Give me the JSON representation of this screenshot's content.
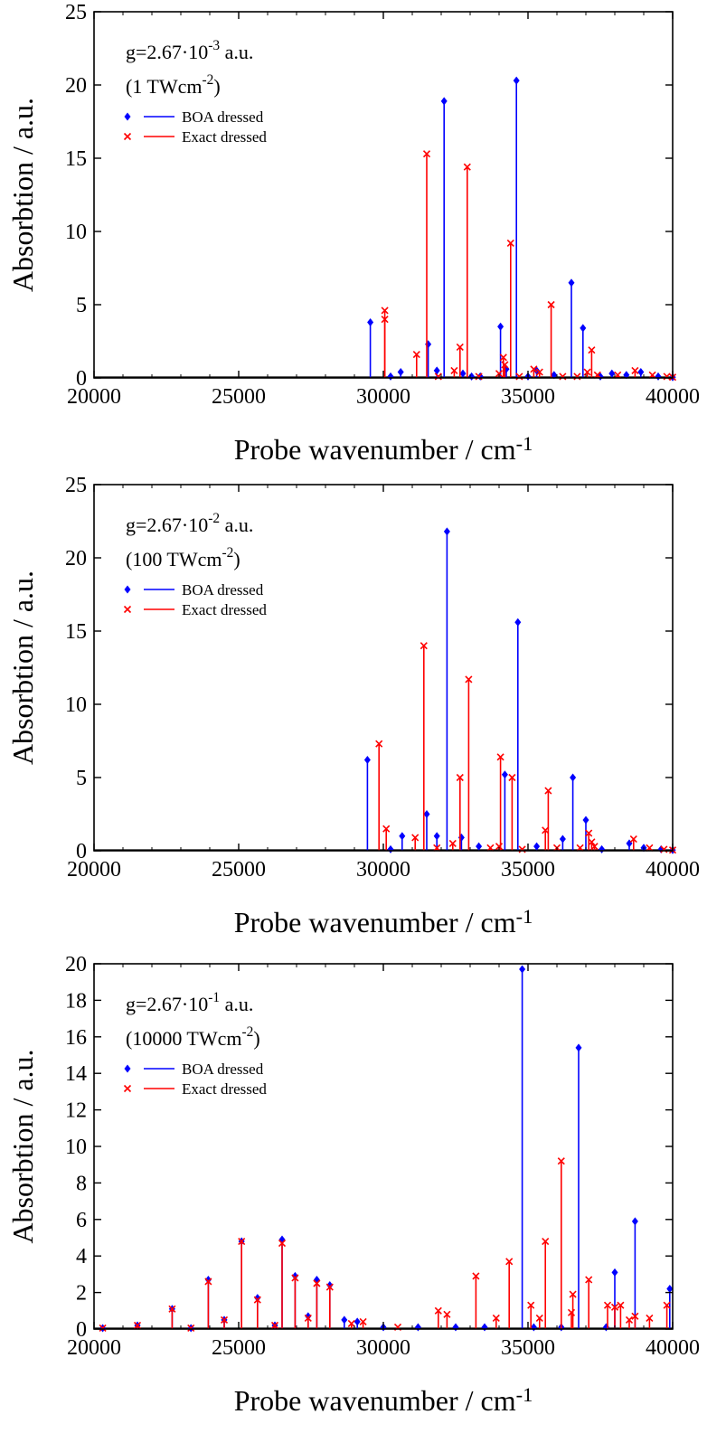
{
  "chart_data": [
    {
      "type": "stem",
      "xlabel": "Probe wavenumber   /   cm",
      "xlabel_sup": "-1",
      "ylabel": "Absorbtion / a.u.",
      "xlim": [
        20000,
        40000
      ],
      "ylim": [
        0,
        25
      ],
      "xticks": [
        20000,
        25000,
        30000,
        35000,
        40000
      ],
      "yticks": [
        0,
        5,
        10,
        15,
        20,
        25
      ],
      "annotation_line1": {
        "pre": "g=2.67·10",
        "sup": "-3",
        "post": " a.u."
      },
      "annotation_line2": {
        "pre": "(1 TWcm",
        "sup": "-2",
        "post": ")"
      },
      "legend": [
        "BOA dressed",
        "Exact dressed"
      ],
      "series": [
        {
          "name": "BOA dressed",
          "marker": "diamond",
          "color": "#0000ff",
          "points": [
            [
              29550,
              3.8
            ],
            [
              30250,
              0.1
            ],
            [
              30600,
              0.4
            ],
            [
              31550,
              2.3
            ],
            [
              31850,
              0.5
            ],
            [
              32100,
              18.9
            ],
            [
              32750,
              0.3
            ],
            [
              33050,
              0.1
            ],
            [
              33350,
              0.1
            ],
            [
              34050,
              3.5
            ],
            [
              34250,
              0.6
            ],
            [
              34600,
              20.3
            ],
            [
              35000,
              0.1
            ],
            [
              35300,
              0.5
            ],
            [
              35900,
              0.2
            ],
            [
              36500,
              6.5
            ],
            [
              36900,
              3.4
            ],
            [
              37500,
              0.1
            ],
            [
              37900,
              0.3
            ],
            [
              38400,
              0.2
            ],
            [
              38900,
              0.4
            ],
            [
              39500,
              0.1
            ],
            [
              40000,
              0.05
            ]
          ]
        },
        {
          "name": "Exact dressed",
          "marker": "x",
          "color": "#ff0000",
          "points": [
            [
              30050,
              4.6
            ],
            [
              30050,
              4.0
            ],
            [
              31150,
              1.6
            ],
            [
              31500,
              15.3
            ],
            [
              31900,
              0.1
            ],
            [
              32450,
              0.5
            ],
            [
              32650,
              2.1
            ],
            [
              32900,
              14.4
            ],
            [
              33300,
              0.1
            ],
            [
              34000,
              0.3
            ],
            [
              34150,
              1.4
            ],
            [
              34200,
              0.9
            ],
            [
              34400,
              9.2
            ],
            [
              34700,
              0.1
            ],
            [
              35200,
              0.6
            ],
            [
              35400,
              0.4
            ],
            [
              35800,
              5.0
            ],
            [
              36200,
              0.1
            ],
            [
              36700,
              0.1
            ],
            [
              37050,
              0.4
            ],
            [
              37200,
              1.9
            ],
            [
              37400,
              0.2
            ],
            [
              38100,
              0.2
            ],
            [
              38700,
              0.5
            ],
            [
              39300,
              0.2
            ],
            [
              39800,
              0.1
            ],
            [
              40000,
              0.05
            ]
          ]
        }
      ]
    },
    {
      "type": "stem",
      "xlabel": "Probe wavenumber   /   cm",
      "xlabel_sup": "-1",
      "ylabel": "Absorbtion / a.u.",
      "xlim": [
        20000,
        40000
      ],
      "ylim": [
        0,
        25
      ],
      "xticks": [
        20000,
        25000,
        30000,
        35000,
        40000
      ],
      "yticks": [
        0,
        5,
        10,
        15,
        20,
        25
      ],
      "annotation_line1": {
        "pre": "g=2.67·10",
        "sup": "-2",
        "post": " a.u."
      },
      "annotation_line2": {
        "pre": "(100 TWcm",
        "sup": "-2",
        "post": ")"
      },
      "legend": [
        "BOA dressed",
        "Exact dressed"
      ],
      "series": [
        {
          "name": "BOA dressed",
          "marker": "diamond",
          "color": "#0000ff",
          "points": [
            [
              29450,
              6.2
            ],
            [
              30250,
              0.1
            ],
            [
              30650,
              1.0
            ],
            [
              31500,
              2.5
            ],
            [
              31850,
              1.0
            ],
            [
              32200,
              21.8
            ],
            [
              32700,
              0.9
            ],
            [
              33300,
              0.3
            ],
            [
              34200,
              5.2
            ],
            [
              34650,
              15.6
            ],
            [
              35300,
              0.3
            ],
            [
              36200,
              0.8
            ],
            [
              36550,
              5.0
            ],
            [
              37000,
              2.1
            ],
            [
              37550,
              0.1
            ],
            [
              38500,
              0.5
            ],
            [
              39000,
              0.2
            ],
            [
              39600,
              0.1
            ],
            [
              40000,
              0.05
            ]
          ]
        },
        {
          "name": "Exact dressed",
          "marker": "x",
          "color": "#ff0000",
          "points": [
            [
              29850,
              7.3
            ],
            [
              30100,
              1.5
            ],
            [
              31100,
              0.9
            ],
            [
              31400,
              14.0
            ],
            [
              31850,
              0.2
            ],
            [
              32400,
              0.5
            ],
            [
              32650,
              5.0
            ],
            [
              32950,
              11.7
            ],
            [
              33700,
              0.2
            ],
            [
              34000,
              0.3
            ],
            [
              34050,
              6.4
            ],
            [
              34450,
              5.0
            ],
            [
              34800,
              0.1
            ],
            [
              35600,
              1.4
            ],
            [
              35700,
              4.1
            ],
            [
              36000,
              0.2
            ],
            [
              36800,
              0.2
            ],
            [
              37100,
              1.2
            ],
            [
              37200,
              0.6
            ],
            [
              37300,
              0.3
            ],
            [
              38650,
              0.8
            ],
            [
              39200,
              0.2
            ],
            [
              39700,
              0.1
            ],
            [
              40000,
              0.05
            ]
          ]
        }
      ]
    },
    {
      "type": "stem",
      "xlabel": "Probe wavenumber   /   cm",
      "xlabel_sup": "-1",
      "ylabel": "Absorbtion / a.u.",
      "xlim": [
        20000,
        40000
      ],
      "ylim": [
        0,
        20
      ],
      "xticks": [
        20000,
        25000,
        30000,
        35000,
        40000
      ],
      "yticks": [
        0,
        2,
        4,
        6,
        8,
        10,
        12,
        14,
        16,
        18,
        20
      ],
      "annotation_line1": {
        "pre": "g=2.67·10",
        "sup": "-1",
        "post": " a.u."
      },
      "annotation_line2": {
        "pre": "(10000 TWcm",
        "sup": "-2",
        "post": ")"
      },
      "legend": [
        "BOA dressed",
        "Exact dressed"
      ],
      "series": [
        {
          "name": "BOA dressed",
          "marker": "diamond",
          "color": "#0000ff",
          "points": [
            [
              20300,
              0.05
            ],
            [
              21500,
              0.2
            ],
            [
              22700,
              1.1
            ],
            [
              23350,
              0.05
            ],
            [
              23950,
              2.7
            ],
            [
              24500,
              0.5
            ],
            [
              25100,
              4.8
            ],
            [
              25650,
              1.7
            ],
            [
              26250,
              0.2
            ],
            [
              26500,
              4.9
            ],
            [
              26950,
              2.9
            ],
            [
              27400,
              0.7
            ],
            [
              27700,
              2.7
            ],
            [
              28150,
              2.4
            ],
            [
              28650,
              0.5
            ],
            [
              29100,
              0.4
            ],
            [
              30000,
              0.1
            ],
            [
              31200,
              0.1
            ],
            [
              32500,
              0.1
            ],
            [
              33500,
              0.1
            ],
            [
              34800,
              19.7
            ],
            [
              35200,
              0.1
            ],
            [
              36150,
              0.1
            ],
            [
              36750,
              15.4
            ],
            [
              37700,
              0.1
            ],
            [
              38000,
              3.1
            ],
            [
              38700,
              5.9
            ],
            [
              39900,
              2.2
            ]
          ]
        },
        {
          "name": "Exact dressed",
          "marker": "x",
          "color": "#ff0000",
          "points": [
            [
              20300,
              0.05
            ],
            [
              21500,
              0.2
            ],
            [
              22700,
              1.1
            ],
            [
              23350,
              0.05
            ],
            [
              23950,
              2.6
            ],
            [
              24500,
              0.5
            ],
            [
              25100,
              4.8
            ],
            [
              25650,
              1.6
            ],
            [
              26250,
              0.2
            ],
            [
              26500,
              4.7
            ],
            [
              26950,
              2.8
            ],
            [
              27400,
              0.6
            ],
            [
              27700,
              2.5
            ],
            [
              28150,
              2.3
            ],
            [
              28900,
              0.3
            ],
            [
              29300,
              0.4
            ],
            [
              30500,
              0.1
            ],
            [
              31900,
              1.0
            ],
            [
              32200,
              0.8
            ],
            [
              33200,
              2.9
            ],
            [
              33900,
              0.6
            ],
            [
              34350,
              3.7
            ],
            [
              35100,
              1.3
            ],
            [
              35400,
              0.6
            ],
            [
              35600,
              4.8
            ],
            [
              36150,
              9.2
            ],
            [
              36500,
              0.9
            ],
            [
              36550,
              1.9
            ],
            [
              37100,
              2.7
            ],
            [
              37750,
              1.3
            ],
            [
              38000,
              1.2
            ],
            [
              38200,
              1.3
            ],
            [
              38500,
              0.5
            ],
            [
              38700,
              0.7
            ],
            [
              39200,
              0.6
            ],
            [
              39800,
              1.3
            ]
          ]
        }
      ]
    }
  ]
}
